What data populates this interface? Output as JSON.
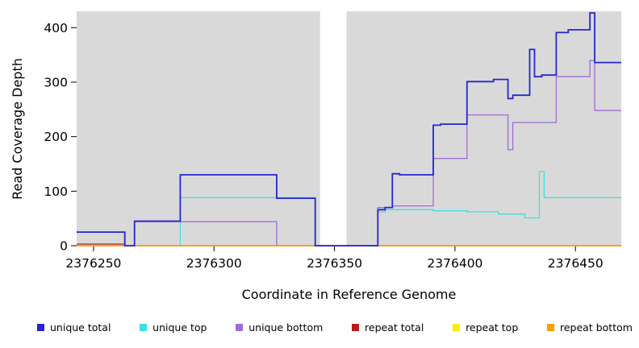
{
  "chart_data": {
    "type": "line",
    "title": "",
    "xlabel": "Coordinate in Reference Genome",
    "ylabel": "Read Coverage Depth",
    "xlim": [
      2376243,
      2376469
    ],
    "ylim": [
      0,
      430
    ],
    "xticks": [
      2376250,
      2376300,
      2376350,
      2376400,
      2376450
    ],
    "yticks": [
      0,
      100,
      200,
      300,
      400
    ],
    "grid": false,
    "legend_position": "bottom",
    "plot_background": "#d9d9d9",
    "gap_region": {
      "from": 2376344,
      "to": 2376355,
      "color": "#ffffff"
    },
    "draw_order": [
      4,
      3,
      2,
      1,
      5,
      0
    ],
    "series": [
      {
        "name": "unique total",
        "color": "#2626cf",
        "width": 1.8,
        "points": [
          [
            2376243,
            25
          ],
          [
            2376263,
            25
          ],
          [
            2376263,
            0
          ],
          [
            2376267,
            0
          ],
          [
            2376267,
            45
          ],
          [
            2376286,
            45
          ],
          [
            2376286,
            130
          ],
          [
            2376326,
            130
          ],
          [
            2376326,
            87
          ],
          [
            2376342,
            87
          ],
          [
            2376342,
            0
          ],
          [
            2376368,
            0
          ],
          [
            2376368,
            66
          ],
          [
            2376371,
            66
          ],
          [
            2376371,
            70
          ],
          [
            2376374,
            70
          ],
          [
            2376374,
            132
          ],
          [
            2376377,
            132
          ],
          [
            2376377,
            130
          ],
          [
            2376391,
            130
          ],
          [
            2376391,
            221
          ],
          [
            2376394,
            221
          ],
          [
            2376394,
            223
          ],
          [
            2376405,
            223
          ],
          [
            2376405,
            301
          ],
          [
            2376416,
            301
          ],
          [
            2376416,
            305
          ],
          [
            2376422,
            305
          ],
          [
            2376422,
            270
          ],
          [
            2376424,
            270
          ],
          [
            2376424,
            276
          ],
          [
            2376431,
            276
          ],
          [
            2376431,
            360
          ],
          [
            2376433,
            360
          ],
          [
            2376433,
            310
          ],
          [
            2376436,
            310
          ],
          [
            2376436,
            313
          ],
          [
            2376442,
            313
          ],
          [
            2376442,
            391
          ],
          [
            2376447,
            391
          ],
          [
            2376447,
            396
          ],
          [
            2376456,
            396
          ],
          [
            2376456,
            427
          ],
          [
            2376458,
            427
          ],
          [
            2376458,
            336
          ],
          [
            2376469,
            336
          ]
        ]
      },
      {
        "name": "unique top",
        "color": "#3fe0e0",
        "width": 1.3,
        "points": [
          [
            2376243,
            0
          ],
          [
            2376286,
            0
          ],
          [
            2376286,
            88
          ],
          [
            2376342,
            88
          ],
          [
            2376342,
            0
          ],
          [
            2376368,
            0
          ],
          [
            2376368,
            62
          ],
          [
            2376371,
            62
          ],
          [
            2376371,
            66
          ],
          [
            2376391,
            66
          ],
          [
            2376391,
            64
          ],
          [
            2376405,
            64
          ],
          [
            2376405,
            62
          ],
          [
            2376418,
            62
          ],
          [
            2376418,
            58
          ],
          [
            2376429,
            58
          ],
          [
            2376429,
            51
          ],
          [
            2376435,
            51
          ],
          [
            2376435,
            136
          ],
          [
            2376437,
            136
          ],
          [
            2376437,
            88
          ],
          [
            2376469,
            88
          ]
        ]
      },
      {
        "name": "unique bottom",
        "color": "#a06cd5",
        "width": 1.3,
        "points": [
          [
            2376243,
            0
          ],
          [
            2376267,
            0
          ],
          [
            2376267,
            44
          ],
          [
            2376326,
            44
          ],
          [
            2376326,
            0
          ],
          [
            2376342,
            0
          ],
          [
            2376368,
            0
          ],
          [
            2376368,
            70
          ],
          [
            2376374,
            70
          ],
          [
            2376374,
            73
          ],
          [
            2376391,
            73
          ],
          [
            2376391,
            160
          ],
          [
            2376405,
            160
          ],
          [
            2376405,
            240
          ],
          [
            2376422,
            240
          ],
          [
            2376422,
            176
          ],
          [
            2376424,
            176
          ],
          [
            2376424,
            226
          ],
          [
            2376442,
            226
          ],
          [
            2376442,
            310
          ],
          [
            2376456,
            310
          ],
          [
            2376456,
            340
          ],
          [
            2376458,
            340
          ],
          [
            2376458,
            248
          ],
          [
            2376469,
            248
          ]
        ]
      },
      {
        "name": "repeat total",
        "color": "#c01818",
        "width": 1.3,
        "points": [
          [
            2376243,
            3
          ],
          [
            2376263,
            3
          ],
          [
            2376263,
            0
          ],
          [
            2376469,
            0
          ]
        ]
      },
      {
        "name": "repeat top",
        "color": "#f2f200",
        "width": 1.3,
        "points": [
          [
            2376243,
            0
          ],
          [
            2376469,
            0
          ]
        ]
      },
      {
        "name": "repeat bottom",
        "color": "#ff9d00",
        "width": 1.5,
        "points": [
          [
            2376243,
            0
          ],
          [
            2376469,
            0
          ]
        ]
      }
    ]
  }
}
